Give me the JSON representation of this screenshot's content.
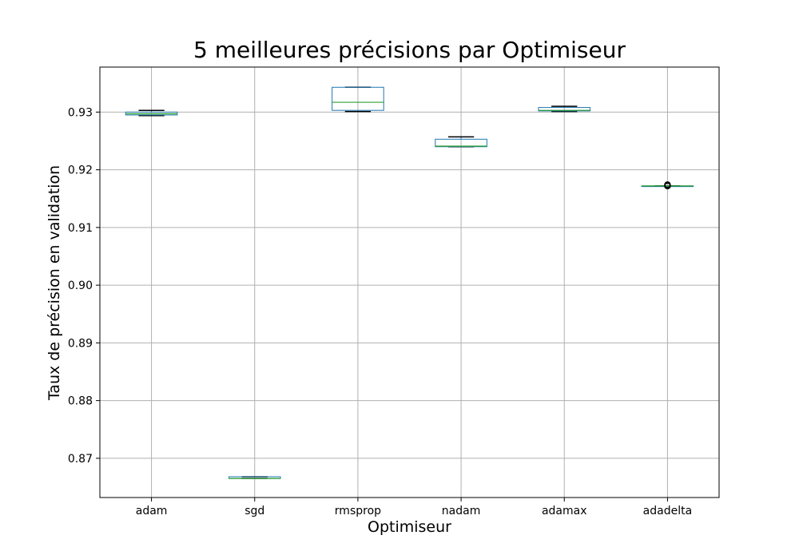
{
  "chart_data": {
    "type": "box",
    "title": "5 meilleures précisions par Optimiseur",
    "xlabel": "Optimiseur",
    "ylabel": "Taux de précision en validation",
    "ylim": [
      0.8632,
      0.9378
    ],
    "yticks": [
      0.87,
      0.88,
      0.89,
      0.9,
      0.91,
      0.92,
      0.93
    ],
    "ytick_labels": [
      "0.87",
      "0.88",
      "0.89",
      "0.90",
      "0.91",
      "0.92",
      "0.93"
    ],
    "grid": true,
    "categories": [
      "adam",
      "sgd",
      "rmsprop",
      "nadam",
      "adamax",
      "adadelta"
    ],
    "boxes": [
      {
        "whisker_low": 0.9294,
        "q1": 0.9295,
        "median": 0.9297,
        "q3": 0.93,
        "whisker_high": 0.9303,
        "outliers": []
      },
      {
        "whisker_low": 0.8665,
        "q1": 0.8665,
        "median": 0.8665,
        "q3": 0.8668,
        "whisker_high": 0.8668,
        "outliers": []
      },
      {
        "whisker_low": 0.9301,
        "q1": 0.9303,
        "median": 0.9317,
        "q3": 0.9343,
        "whisker_high": 0.9343,
        "outliers": []
      },
      {
        "whisker_low": 0.924,
        "q1": 0.924,
        "median": 0.9241,
        "q3": 0.9253,
        "whisker_high": 0.9257,
        "outliers": []
      },
      {
        "whisker_low": 0.9301,
        "q1": 0.9302,
        "median": 0.9303,
        "q3": 0.9308,
        "whisker_high": 0.931,
        "outliers": []
      },
      {
        "whisker_low": 0.9172,
        "q1": 0.9172,
        "median": 0.9172,
        "q3": 0.9172,
        "whisker_high": 0.9172,
        "outliers": [
          0.9174,
          0.9172
        ]
      }
    ]
  },
  "colors": {
    "box": "#1f77b4",
    "median": "#2ca02c",
    "whisker": "#000000",
    "grid": "#b0b0b0",
    "axes": "#000000"
  }
}
